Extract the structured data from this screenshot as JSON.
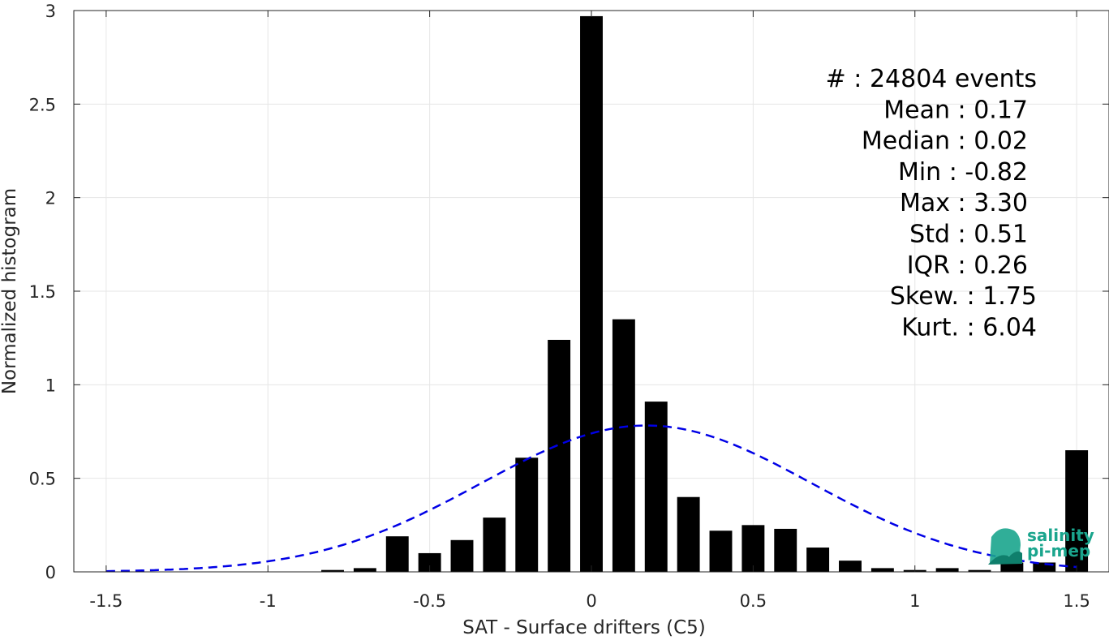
{
  "chart_data": {
    "type": "bar",
    "xlabel": "SAT - Surface drifters (C5)",
    "ylabel": "Normalized histogram",
    "xlim": [
      -1.6,
      1.6
    ],
    "ylim": [
      0,
      3
    ],
    "x_ticks": [
      "-1.5",
      "-1",
      "-0.5",
      "0",
      "0.5",
      "1",
      "1.5"
    ],
    "x_tick_values": [
      -1.5,
      -1,
      -0.5,
      0,
      0.5,
      1,
      1.5
    ],
    "y_ticks": [
      "0",
      "0.5",
      "1",
      "1.5",
      "2",
      "2.5",
      "3"
    ],
    "y_tick_values": [
      0,
      0.5,
      1,
      1.5,
      2,
      2.5,
      3
    ],
    "grid": true,
    "bars": {
      "x": [
        -0.8,
        -0.7,
        -0.6,
        -0.5,
        -0.4,
        -0.3,
        -0.2,
        -0.1,
        0.0,
        0.1,
        0.2,
        0.3,
        0.4,
        0.5,
        0.6,
        0.7,
        0.8,
        0.9,
        1.0,
        1.1,
        1.2,
        1.3,
        1.4,
        1.5
      ],
      "values": [
        0.01,
        0.02,
        0.19,
        0.1,
        0.17,
        0.29,
        0.61,
        1.24,
        2.97,
        1.35,
        0.91,
        0.4,
        0.22,
        0.25,
        0.23,
        0.13,
        0.06,
        0.02,
        0.01,
        0.02,
        0.01,
        0.05,
        0.05,
        0.65
      ],
      "color": "#000000"
    },
    "fit_curve": {
      "style": "dashed",
      "color": "#0000e6",
      "mean": 0.17,
      "std": 0.51
    },
    "stats": [
      "#  : 24804 events",
      "Mean : 0.17",
      "Median : 0.02",
      "Min : -0.82",
      "Max : 3.30",
      "Std : 0.51",
      "IQR : 0.26",
      "Skew. : 1.75",
      "Kurt. : 6.04"
    ]
  },
  "logo": {
    "line1": "salinity",
    "line2": "pi-mep",
    "color": "#1aa58d"
  }
}
